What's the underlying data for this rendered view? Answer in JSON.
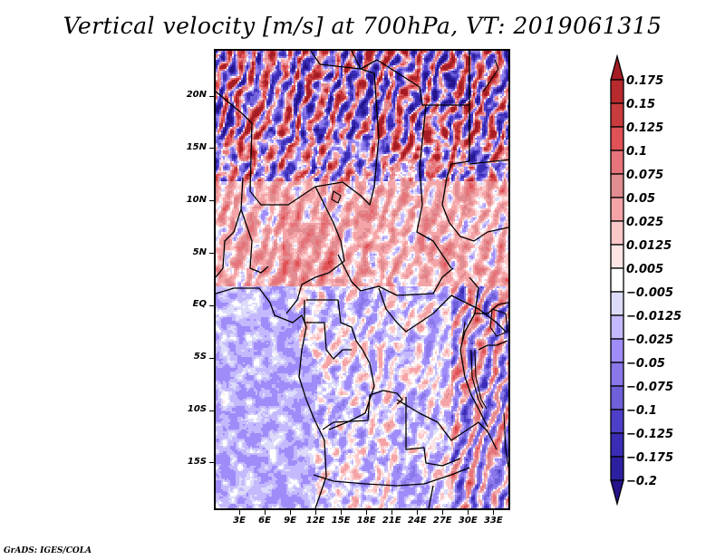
{
  "chart_data": {
    "type": "heatmap",
    "title": "Vertical velocity [m/s] at 700hPa, VT: 2019061315",
    "variable": "Vertical velocity",
    "units": "m/s",
    "level": "700hPa",
    "valid_time": "2019061315",
    "projection": "lat-lon map",
    "xlim_deg": [
      0,
      35
    ],
    "ylim_deg": [
      -19.5,
      24.5
    ],
    "x_ticks": [
      {
        "value": 3,
        "label": "3E"
      },
      {
        "value": 6,
        "label": "6E"
      },
      {
        "value": 9,
        "label": "9E"
      },
      {
        "value": 12,
        "label": "12E"
      },
      {
        "value": 15,
        "label": "15E"
      },
      {
        "value": 18,
        "label": "18E"
      },
      {
        "value": 21,
        "label": "21E"
      },
      {
        "value": 24,
        "label": "24E"
      },
      {
        "value": 27,
        "label": "27E"
      },
      {
        "value": 30,
        "label": "30E"
      },
      {
        "value": 33,
        "label": "33E"
      }
    ],
    "y_ticks": [
      {
        "value": 20,
        "label": "20N"
      },
      {
        "value": 15,
        "label": "15N"
      },
      {
        "value": 10,
        "label": "10N"
      },
      {
        "value": 5,
        "label": "5N"
      },
      {
        "value": 0,
        "label": "EQ"
      },
      {
        "value": -5,
        "label": "5S"
      },
      {
        "value": -10,
        "label": "10S"
      },
      {
        "value": -15,
        "label": "15S"
      }
    ],
    "colorbar": {
      "orientation": "vertical",
      "extend": "both",
      "levels": [
        {
          "label": "0.175",
          "value": 0.175
        },
        {
          "label": "0.15",
          "value": 0.15
        },
        {
          "label": "0.125",
          "value": 0.125
        },
        {
          "label": "0.1",
          "value": 0.1
        },
        {
          "label": "0.075",
          "value": 0.075
        },
        {
          "label": "0.05",
          "value": 0.05
        },
        {
          "label": "0.025",
          "value": 0.025
        },
        {
          "label": "0.0125",
          "value": 0.0125
        },
        {
          "label": "0.005",
          "value": 0.005
        },
        {
          "label": "−0.005",
          "value": -0.005
        },
        {
          "label": "−0.0125",
          "value": -0.0125
        },
        {
          "label": "−0.025",
          "value": -0.025
        },
        {
          "label": "−0.05",
          "value": -0.05
        },
        {
          "label": "−0.075",
          "value": -0.075
        },
        {
          "label": "−0.1",
          "value": -0.1
        },
        {
          "label": "−0.125",
          "value": -0.125
        },
        {
          "label": "−0.175",
          "value": -0.175
        },
        {
          "label": "−0.2",
          "value": -0.2
        }
      ],
      "colors_top_to_bottom": [
        "#a51c24",
        "#b72a2e",
        "#c93c3e",
        "#e05255",
        "#e6747a",
        "#e18c90",
        "#f4a3a6",
        "#fbc8c9",
        "#fde4e5",
        "#ffffff",
        "#dcdcfa",
        "#c4b9fc",
        "#a08cf8",
        "#8a78ea",
        "#6e60d8",
        "#4e3fc8",
        "#3a2cb4",
        "#2c20a0",
        "#24138a"
      ]
    },
    "regional_summary": [
      {
        "region": "Sahel/Sahara north of 12N",
        "pattern": "strong alternating updraft/downdraft streaks, up to >0.175 and <-0.2"
      },
      {
        "region": "Central Africa 2N-10N",
        "pattern": "broad weak-to-moderate ascent (0.005 to 0.1)"
      },
      {
        "region": "Gulf of Guinea / SE Atlantic",
        "pattern": "weak subsidence (-0.005 to -0.05)"
      },
      {
        "region": "East African Rift lakes",
        "pattern": "small-scale strong mixed signals"
      }
    ]
  },
  "footer": "GrADS: IGES/COLA"
}
